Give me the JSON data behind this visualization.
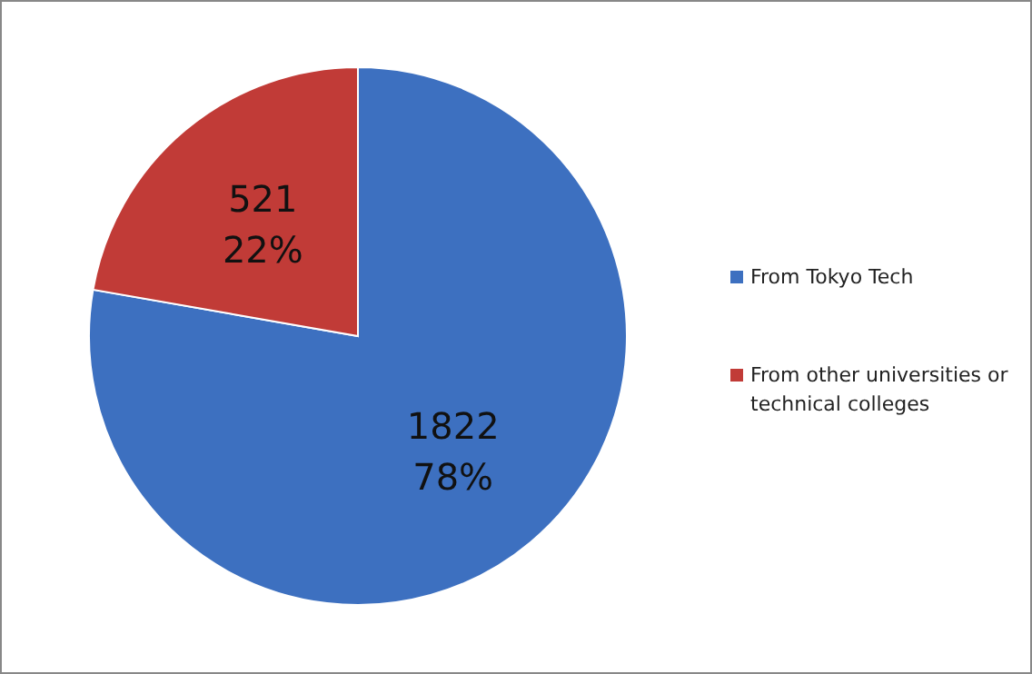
{
  "chart_data": {
    "type": "pie",
    "categories": [
      "From Tokyo Tech",
      "From other universities or technical colleges"
    ],
    "values": [
      1822,
      521
    ],
    "colors": [
      "#3d70c0",
      "#c13b37"
    ],
    "value_labels": [
      "1822\n78%",
      "521\n22%"
    ],
    "legend": "right"
  }
}
